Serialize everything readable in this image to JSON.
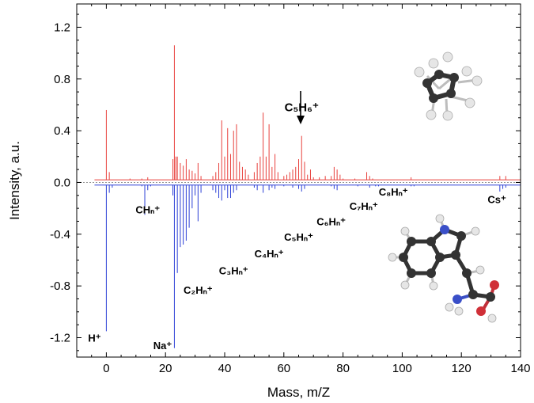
{
  "chart_data": {
    "type": "line",
    "xlabel": "Mass, m/Z",
    "ylabel": "Intensity, a.u.",
    "xlim": [
      -10,
      140
    ],
    "ylim": [
      -1.35,
      1.38
    ],
    "x_ticks": [
      0,
      20,
      40,
      60,
      80,
      100,
      120,
      140
    ],
    "y_ticks": [
      -1.2,
      -0.8,
      -0.4,
      0.0,
      0.4,
      0.8,
      1.2
    ],
    "y_tick_labels": [
      "-1.2",
      "-0.8",
      "-0.4",
      "0.0",
      "0.4",
      "0.8",
      "1.2"
    ],
    "grid": false,
    "series": [
      {
        "color": "#e8403c",
        "baseline": 0.02,
        "peaks": [
          [
            0,
            0.56
          ],
          [
            1,
            0.08
          ],
          [
            6,
            0.02
          ],
          [
            8,
            0.03
          ],
          [
            12,
            0.03
          ],
          [
            14,
            0.04
          ],
          [
            22.5,
            0.18
          ],
          [
            23,
            1.06
          ],
          [
            23.5,
            0.2
          ],
          [
            24,
            0.2
          ],
          [
            25,
            0.15
          ],
          [
            26,
            0.13
          ],
          [
            27,
            0.18
          ],
          [
            28,
            0.1
          ],
          [
            29,
            0.09
          ],
          [
            30,
            0.07
          ],
          [
            31,
            0.15
          ],
          [
            32,
            0.05
          ],
          [
            36,
            0.05
          ],
          [
            37,
            0.08
          ],
          [
            38,
            0.15
          ],
          [
            39,
            0.48
          ],
          [
            40,
            0.2
          ],
          [
            41,
            0.42
          ],
          [
            42,
            0.22
          ],
          [
            43,
            0.4
          ],
          [
            44,
            0.45
          ],
          [
            45,
            0.16
          ],
          [
            46,
            0.12
          ],
          [
            47,
            0.1
          ],
          [
            48,
            0.06
          ],
          [
            50,
            0.08
          ],
          [
            51,
            0.15
          ],
          [
            52,
            0.2
          ],
          [
            53,
            0.54
          ],
          [
            54,
            0.2
          ],
          [
            55,
            0.45
          ],
          [
            56,
            0.12
          ],
          [
            57,
            0.22
          ],
          [
            58,
            0.08
          ],
          [
            60,
            0.05
          ],
          [
            61,
            0.06
          ],
          [
            62,
            0.08
          ],
          [
            63,
            0.1
          ],
          [
            64,
            0.12
          ],
          [
            65,
            0.18
          ],
          [
            66,
            0.36
          ],
          [
            67,
            0.16
          ],
          [
            68,
            0.06
          ],
          [
            69,
            0.1
          ],
          [
            70,
            0.04
          ],
          [
            72,
            0.04
          ],
          [
            74,
            0.05
          ],
          [
            76,
            0.05
          ],
          [
            77,
            0.12
          ],
          [
            78,
            0.1
          ],
          [
            79,
            0.06
          ],
          [
            80,
            0.03
          ],
          [
            84,
            0.03
          ],
          [
            88,
            0.08
          ],
          [
            89,
            0.05
          ],
          [
            90,
            0.03
          ],
          [
            103,
            0.04
          ],
          [
            133,
            0.05
          ],
          [
            135,
            0.05
          ]
        ]
      },
      {
        "color": "#2b3fd6",
        "baseline": -0.02,
        "peaks": [
          [
            0,
            -1.15
          ],
          [
            1,
            -0.08
          ],
          [
            2,
            -0.04
          ],
          [
            6,
            -0.02
          ],
          [
            10,
            -0.02
          ],
          [
            12,
            -0.03
          ],
          [
            13,
            -0.25
          ],
          [
            14,
            -0.06
          ],
          [
            15,
            -0.03
          ],
          [
            22.5,
            -0.1
          ],
          [
            23,
            -1.28
          ],
          [
            24,
            -0.7
          ],
          [
            25,
            -0.5
          ],
          [
            26,
            -0.48
          ],
          [
            27,
            -0.45
          ],
          [
            28,
            -0.35
          ],
          [
            29,
            -0.2
          ],
          [
            30,
            -0.1
          ],
          [
            31,
            -0.3
          ],
          [
            32,
            -0.08
          ],
          [
            36,
            -0.06
          ],
          [
            37,
            -0.08
          ],
          [
            38,
            -0.12
          ],
          [
            39,
            -0.14
          ],
          [
            40,
            -0.06
          ],
          [
            41,
            -0.12
          ],
          [
            42,
            -0.12
          ],
          [
            43,
            -0.08
          ],
          [
            44,
            -0.06
          ],
          [
            50,
            -0.04
          ],
          [
            51,
            -0.06
          ],
          [
            53,
            -0.08
          ],
          [
            55,
            -0.06
          ],
          [
            56,
            -0.04
          ],
          [
            57,
            -0.05
          ],
          [
            60,
            -0.03
          ],
          [
            63,
            -0.04
          ],
          [
            65,
            -0.05
          ],
          [
            66,
            -0.07
          ],
          [
            67,
            -0.05
          ],
          [
            76,
            -0.03
          ],
          [
            77,
            -0.05
          ],
          [
            78,
            -0.06
          ],
          [
            85,
            -0.03
          ],
          [
            89,
            -0.04
          ],
          [
            91,
            -0.03
          ],
          [
            92,
            -0.03
          ],
          [
            103,
            -0.03
          ],
          [
            104,
            -0.03
          ],
          [
            118,
            -0.02
          ],
          [
            133,
            -0.07
          ],
          [
            134,
            -0.05
          ],
          [
            135,
            -0.04
          ]
        ]
      }
    ],
    "annotations": [
      {
        "text": "C₅H₆⁺",
        "x": 66,
        "y": 0.55,
        "style": "big"
      },
      {
        "text": "CHₙ⁺",
        "x": 14,
        "y": -0.24
      },
      {
        "text": "C₂Hₙ⁺",
        "x": 31,
        "y": -0.86
      },
      {
        "text": "C₃Hₙ⁺",
        "x": 43,
        "y": -0.71
      },
      {
        "text": "C₄Hₙ⁺",
        "x": 55,
        "y": -0.58
      },
      {
        "text": "C₅Hₙ⁺",
        "x": 65,
        "y": -0.45
      },
      {
        "text": "C₆Hₙ⁺",
        "x": 76,
        "y": -0.33
      },
      {
        "text": "C₇Hₙ⁺",
        "x": 87,
        "y": -0.21
      },
      {
        "text": "C₈Hₙ⁺",
        "x": 97,
        "y": -0.1
      },
      {
        "text": "Cs⁺",
        "x": 132,
        "y": -0.16
      },
      {
        "text": "H⁺",
        "x": -4,
        "y": -1.23
      },
      {
        "text": "Na⁺",
        "x": 19,
        "y": -1.29
      }
    ]
  }
}
